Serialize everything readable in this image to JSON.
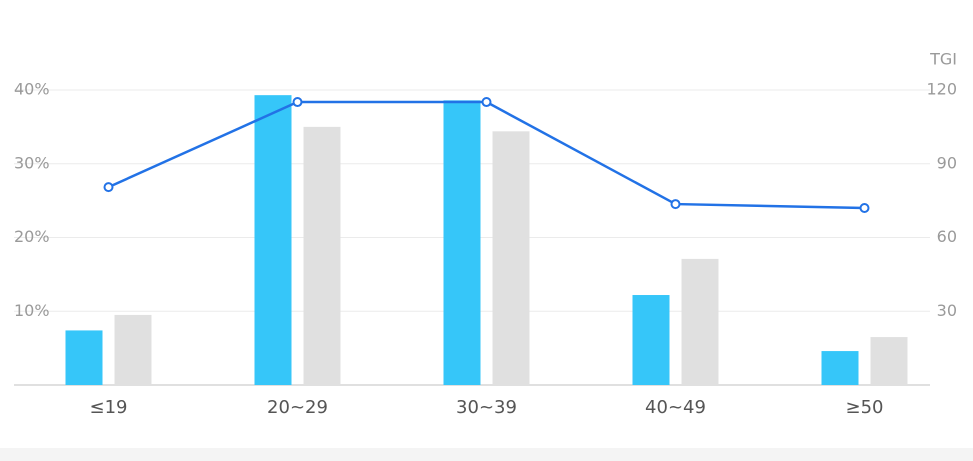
{
  "chart_data": {
    "type": "bar-line",
    "y2_label": "TGI",
    "categories": [
      "≤19",
      "20~29",
      "30~39",
      "40~49",
      "≥50"
    ],
    "series": [
      {
        "type": "bar",
        "color": "#36c6f9",
        "values": [
          7.4,
          39.3,
          38.6,
          12.2,
          4.6
        ]
      },
      {
        "type": "bar",
        "color": "#e0e0e0",
        "values": [
          9.5,
          35.0,
          34.4,
          17.1,
          6.5
        ]
      },
      {
        "type": "line",
        "axis": "y2",
        "color": "#2272e6",
        "values": [
          80.5,
          115.1,
          115.1,
          73.6,
          72.0
        ]
      }
    ],
    "ylim": [
      0,
      40
    ],
    "yticks": [
      {
        "value": 10,
        "label": "10%"
      },
      {
        "value": 20,
        "label": "20%"
      },
      {
        "value": 30,
        "label": "30%"
      },
      {
        "value": 40,
        "label": "40%"
      }
    ],
    "y2lim": [
      0,
      120
    ],
    "y2ticks": [
      30,
      60,
      90,
      120
    ],
    "grid": true
  }
}
